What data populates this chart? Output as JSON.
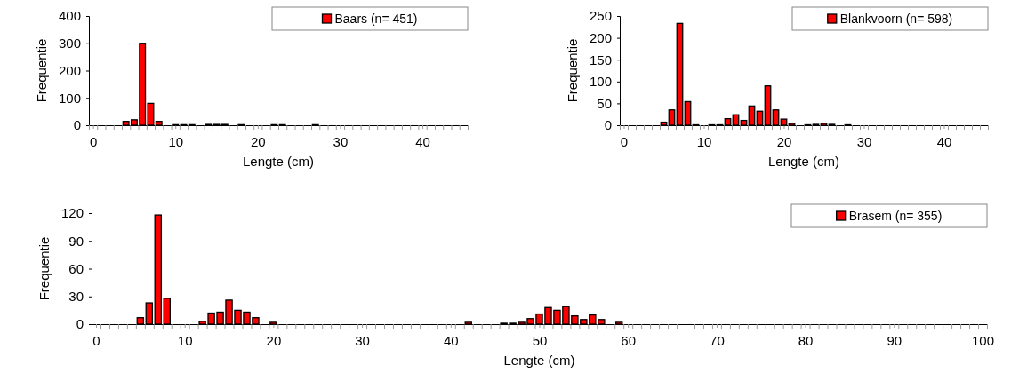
{
  "chart_data": [
    {
      "type": "bar",
      "xlabel": "Lengte (cm)",
      "ylabel": "Frequentie",
      "legend": "top right",
      "xlim": [
        -0.5,
        45.5
      ],
      "ylim": [
        0,
        400
      ],
      "yticks": [
        0,
        100,
        200,
        300,
        400
      ],
      "xticks": [
        0,
        10,
        20,
        30,
        40,
        {
          "value": -0.5,
          "label": null
        },
        {
          "value": 0.5,
          "label": null
        },
        {
          "value": 1.5,
          "label": null
        },
        {
          "value": 2.5,
          "label": null
        },
        {
          "value": 3.5,
          "label": null
        },
        {
          "value": 4.5,
          "label": null
        },
        {
          "value": 5.5,
          "label": null
        },
        {
          "value": 6.5,
          "label": null
        },
        {
          "value": 7.5,
          "label": null
        },
        {
          "value": 8.5,
          "label": null
        },
        {
          "value": 9.5,
          "label": null
        },
        {
          "value": 10.5,
          "label": null
        },
        {
          "value": 11.5,
          "label": null
        },
        {
          "value": 12.5,
          "label": null
        },
        {
          "value": 13.5,
          "label": null
        },
        {
          "value": 14.5,
          "label": null
        },
        {
          "value": 15.5,
          "label": null
        },
        {
          "value": 16.5,
          "label": null
        },
        {
          "value": 17.5,
          "label": null
        },
        {
          "value": 18.5,
          "label": null
        },
        {
          "value": 19.5,
          "label": null
        },
        {
          "value": 20.5,
          "label": null
        },
        {
          "value": 21.5,
          "label": null
        },
        {
          "value": 22.5,
          "label": null
        },
        {
          "value": 23.5,
          "label": null
        },
        {
          "value": 24.5,
          "label": null
        },
        {
          "value": 25.5,
          "label": null
        },
        {
          "value": 26.5,
          "label": null
        },
        {
          "value": 27.5,
          "label": null
        },
        {
          "value": 28.5,
          "label": null
        },
        {
          "value": 29.5,
          "label": null
        },
        {
          "value": 30.5,
          "label": null
        },
        {
          "value": 31.5,
          "label": null
        },
        {
          "value": 32.5,
          "label": null
        },
        {
          "value": 33.5,
          "label": null
        },
        {
          "value": 34.5,
          "label": null
        },
        {
          "value": 35.5,
          "label": null
        },
        {
          "value": 36.5,
          "label": null
        },
        {
          "value": 37.5,
          "label": null
        },
        {
          "value": 38.5,
          "label": null
        },
        {
          "value": 39.5,
          "label": null
        },
        {
          "value": 40.5,
          "label": null
        },
        {
          "value": 41.5,
          "label": null
        },
        {
          "value": 42.5,
          "label": null
        },
        {
          "value": 43.5,
          "label": null
        },
        {
          "value": 44.5,
          "label": null
        },
        {
          "value": 45.5,
          "label": null
        }
      ],
      "series": [
        {
          "name": "Baars (n= 451)",
          "color": "#ff0000",
          "x": [
            4,
            5,
            6,
            7,
            8,
            10,
            11,
            12,
            14,
            15,
            16,
            18,
            22,
            23,
            27
          ],
          "values": [
            14,
            20,
            300,
            80,
            14,
            2,
            2,
            2,
            3,
            3,
            3,
            2,
            2,
            2,
            2
          ]
        }
      ]
    },
    {
      "type": "bar",
      "xlabel": "Lengte (cm)",
      "ylabel": "Frequentie",
      "legend": "top right",
      "xlim": [
        -0.5,
        45.5
      ],
      "ylim": [
        0,
        250
      ],
      "yticks": [
        0,
        50,
        100,
        150,
        200,
        250
      ],
      "xticks": [
        0,
        10,
        20,
        30,
        40,
        {
          "value": -0.5,
          "label": null
        },
        {
          "value": 0.5,
          "label": null
        },
        {
          "value": 1.5,
          "label": null
        },
        {
          "value": 2.5,
          "label": null
        },
        {
          "value": 3.5,
          "label": null
        },
        {
          "value": 4.5,
          "label": null
        },
        {
          "value": 5.5,
          "label": null
        },
        {
          "value": 6.5,
          "label": null
        },
        {
          "value": 7.5,
          "label": null
        },
        {
          "value": 8.5,
          "label": null
        },
        {
          "value": 9.5,
          "label": null
        },
        {
          "value": 10.5,
          "label": null
        },
        {
          "value": 11.5,
          "label": null
        },
        {
          "value": 12.5,
          "label": null
        },
        {
          "value": 13.5,
          "label": null
        },
        {
          "value": 14.5,
          "label": null
        },
        {
          "value": 15.5,
          "label": null
        },
        {
          "value": 16.5,
          "label": null
        },
        {
          "value": 17.5,
          "label": null
        },
        {
          "value": 18.5,
          "label": null
        },
        {
          "value": 19.5,
          "label": null
        },
        {
          "value": 20.5,
          "label": null
        },
        {
          "value": 21.5,
          "label": null
        },
        {
          "value": 22.5,
          "label": null
        },
        {
          "value": 23.5,
          "label": null
        },
        {
          "value": 24.5,
          "label": null
        },
        {
          "value": 25.5,
          "label": null
        },
        {
          "value": 26.5,
          "label": null
        },
        {
          "value": 27.5,
          "label": null
        },
        {
          "value": 28.5,
          "label": null
        },
        {
          "value": 29.5,
          "label": null
        },
        {
          "value": 30.5,
          "label": null
        },
        {
          "value": 31.5,
          "label": null
        },
        {
          "value": 32.5,
          "label": null
        },
        {
          "value": 33.5,
          "label": null
        },
        {
          "value": 34.5,
          "label": null
        },
        {
          "value": 35.5,
          "label": null
        },
        {
          "value": 36.5,
          "label": null
        },
        {
          "value": 37.5,
          "label": null
        },
        {
          "value": 38.5,
          "label": null
        },
        {
          "value": 39.5,
          "label": null
        },
        {
          "value": 40.5,
          "label": null
        },
        {
          "value": 41.5,
          "label": null
        },
        {
          "value": 42.5,
          "label": null
        },
        {
          "value": 43.5,
          "label": null
        },
        {
          "value": 44.5,
          "label": null
        },
        {
          "value": 45.5,
          "label": null
        }
      ],
      "series": [
        {
          "name": "Blankvoorn (n= 598)",
          "color": "#ff0000",
          "x": [
            5,
            6,
            7,
            8,
            9,
            11,
            12,
            13,
            14,
            15,
            16,
            17,
            18,
            19,
            20,
            21,
            23,
            24,
            25,
            26,
            28
          ],
          "values": [
            7,
            35,
            233,
            54,
            1,
            1,
            1,
            15,
            24,
            11,
            44,
            32,
            90,
            35,
            14,
            4,
            1,
            2,
            4,
            2,
            1
          ]
        }
      ]
    },
    {
      "type": "bar",
      "xlabel": "Lengte (cm)",
      "ylabel": "Frequentie",
      "legend": "top right",
      "xlim": [
        -0.5,
        100.5
      ],
      "ylim": [
        0,
        120
      ],
      "yticks": [
        0,
        30,
        60,
        90,
        120
      ],
      "xticks": [
        0,
        10,
        20,
        30,
        40,
        50,
        60,
        70,
        80,
        90,
        100,
        {
          "value": -0.5,
          "label": null
        },
        {
          "value": 0.5,
          "label": null
        },
        {
          "value": 1.5,
          "label": null
        },
        {
          "value": 2.5,
          "label": null
        },
        {
          "value": 3.5,
          "label": null
        },
        {
          "value": 4.5,
          "label": null
        },
        {
          "value": 5.5,
          "label": null
        },
        {
          "value": 6.5,
          "label": null
        },
        {
          "value": 7.5,
          "label": null
        },
        {
          "value": 8.5,
          "label": null
        },
        {
          "value": 9.5,
          "label": null
        },
        {
          "value": 10.5,
          "label": null
        },
        {
          "value": 11.5,
          "label": null
        },
        {
          "value": 12.5,
          "label": null
        },
        {
          "value": 13.5,
          "label": null
        },
        {
          "value": 14.5,
          "label": null
        },
        {
          "value": 15.5,
          "label": null
        },
        {
          "value": 16.5,
          "label": null
        },
        {
          "value": 17.5,
          "label": null
        },
        {
          "value": 18.5,
          "label": null
        },
        {
          "value": 19.5,
          "label": null
        },
        {
          "value": 20.5,
          "label": null
        },
        {
          "value": 21.5,
          "label": null
        },
        {
          "value": 22.5,
          "label": null
        },
        {
          "value": 23.5,
          "label": null
        },
        {
          "value": 24.5,
          "label": null
        },
        {
          "value": 25.5,
          "label": null
        },
        {
          "value": 26.5,
          "label": null
        },
        {
          "value": 27.5,
          "label": null
        },
        {
          "value": 28.5,
          "label": null
        },
        {
          "value": 29.5,
          "label": null
        },
        {
          "value": 30.5,
          "label": null
        },
        {
          "value": 31.5,
          "label": null
        },
        {
          "value": 32.5,
          "label": null
        },
        {
          "value": 33.5,
          "label": null
        },
        {
          "value": 34.5,
          "label": null
        },
        {
          "value": 35.5,
          "label": null
        },
        {
          "value": 36.5,
          "label": null
        },
        {
          "value": 37.5,
          "label": null
        },
        {
          "value": 38.5,
          "label": null
        },
        {
          "value": 39.5,
          "label": null
        },
        {
          "value": 40.5,
          "label": null
        },
        {
          "value": 41.5,
          "label": null
        },
        {
          "value": 42.5,
          "label": null
        },
        {
          "value": 43.5,
          "label": null
        },
        {
          "value": 44.5,
          "label": null
        },
        {
          "value": 45.5,
          "label": null
        },
        {
          "value": 46.5,
          "label": null
        },
        {
          "value": 47.5,
          "label": null
        },
        {
          "value": 48.5,
          "label": null
        },
        {
          "value": 49.5,
          "label": null
        },
        {
          "value": 50.5,
          "label": null
        },
        {
          "value": 51.5,
          "label": null
        },
        {
          "value": 52.5,
          "label": null
        },
        {
          "value": 53.5,
          "label": null
        },
        {
          "value": 54.5,
          "label": null
        },
        {
          "value": 55.5,
          "label": null
        },
        {
          "value": 56.5,
          "label": null
        },
        {
          "value": 57.5,
          "label": null
        },
        {
          "value": 58.5,
          "label": null
        },
        {
          "value": 59.5,
          "label": null
        },
        {
          "value": 60.5,
          "label": null
        },
        {
          "value": 61.5,
          "label": null
        },
        {
          "value": 62.5,
          "label": null
        },
        {
          "value": 63.5,
          "label": null
        },
        {
          "value": 64.5,
          "label": null
        },
        {
          "value": 65.5,
          "label": null
        },
        {
          "value": 66.5,
          "label": null
        },
        {
          "value": 67.5,
          "label": null
        },
        {
          "value": 68.5,
          "label": null
        },
        {
          "value": 69.5,
          "label": null
        },
        {
          "value": 70.5,
          "label": null
        },
        {
          "value": 71.5,
          "label": null
        },
        {
          "value": 72.5,
          "label": null
        },
        {
          "value": 73.5,
          "label": null
        },
        {
          "value": 74.5,
          "label": null
        },
        {
          "value": 75.5,
          "label": null
        },
        {
          "value": 76.5,
          "label": null
        },
        {
          "value": 77.5,
          "label": null
        },
        {
          "value": 78.5,
          "label": null
        },
        {
          "value": 79.5,
          "label": null
        },
        {
          "value": 80.5,
          "label": null
        },
        {
          "value": 81.5,
          "label": null
        },
        {
          "value": 82.5,
          "label": null
        },
        {
          "value": 83.5,
          "label": null
        },
        {
          "value": 84.5,
          "label": null
        },
        {
          "value": 85.5,
          "label": null
        },
        {
          "value": 86.5,
          "label": null
        },
        {
          "value": 87.5,
          "label": null
        },
        {
          "value": 88.5,
          "label": null
        },
        {
          "value": 89.5,
          "label": null
        },
        {
          "value": 90.5,
          "label": null
        },
        {
          "value": 91.5,
          "label": null
        },
        {
          "value": 92.5,
          "label": null
        },
        {
          "value": 93.5,
          "label": null
        },
        {
          "value": 94.5,
          "label": null
        },
        {
          "value": 95.5,
          "label": null
        },
        {
          "value": 96.5,
          "label": null
        },
        {
          "value": 97.5,
          "label": null
        },
        {
          "value": 98.5,
          "label": null
        },
        {
          "value": 99.5,
          "label": null
        },
        {
          "value": 100.5,
          "label": null
        }
      ],
      "series": [
        {
          "name": "Brasem (n= 355)",
          "color": "#ff0000",
          "x": [
            5,
            6,
            7,
            8,
            12,
            13,
            14,
            15,
            16,
            17,
            18,
            20,
            42,
            46,
            47,
            48,
            49,
            50,
            51,
            52,
            53,
            54,
            55,
            56,
            57,
            59
          ],
          "values": [
            7,
            23,
            118,
            28,
            3,
            12,
            13,
            26,
            15,
            13,
            7,
            2,
            2,
            1,
            1,
            2,
            6,
            11,
            18,
            15,
            19,
            9,
            5,
            10,
            5,
            2
          ]
        }
      ]
    }
  ]
}
